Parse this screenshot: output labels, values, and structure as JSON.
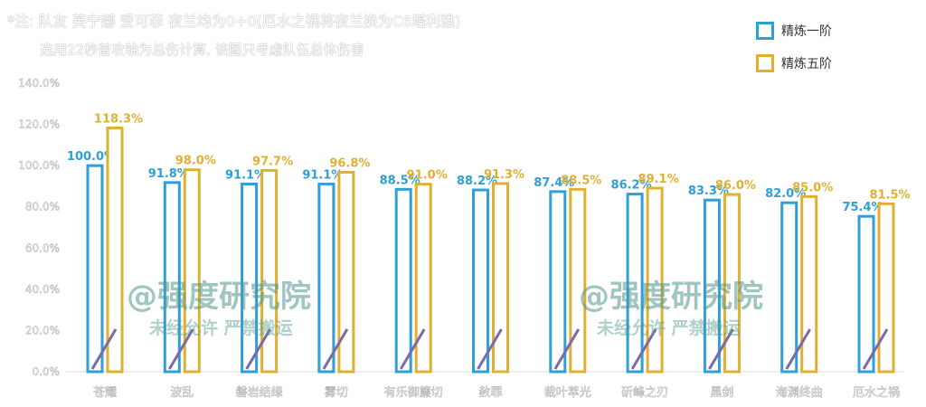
{
  "notes": {
    "line1": "*注: 队友 芙宁娜 爱可菲 夜兰均为0+0(厄水之祸将夜兰换为C6塔利雅)",
    "line2": "选用22秒普攻轴为总伤计算, 该图只考虑队伍总体伤害"
  },
  "watermark": {
    "main": "@强度研究院",
    "sub": "未经允许 严禁搬运"
  },
  "colors": {
    "r1": "#2f9fd8",
    "r5": "#e0b030"
  },
  "chart_data": {
    "type": "bar",
    "title": "",
    "categories": [
      "苍耀",
      "波乱",
      "磐岩结绿",
      "雾切",
      "有乐御簾切",
      "赦罪",
      "裁叶萃光",
      "斫峰之刃",
      "黑剑",
      "海渊终曲",
      "厄水之祸"
    ],
    "series": [
      {
        "name": "精炼一阶",
        "values": [
          100.0,
          91.8,
          91.1,
          91.1,
          88.5,
          88.2,
          87.4,
          86.2,
          83.3,
          82.0,
          75.4
        ]
      },
      {
        "name": "精炼五阶",
        "values": [
          118.3,
          98.0,
          97.7,
          96.8,
          91.0,
          91.3,
          88.5,
          89.1,
          86.0,
          85.0,
          81.5
        ]
      }
    ],
    "ylim": [
      0,
      140
    ],
    "yticks": [
      "0.0%",
      "20.0%",
      "40.0%",
      "60.0%",
      "80.0%",
      "100.0%",
      "120.0%",
      "140.0%"
    ],
    "legend": "top-right",
    "grid": false
  }
}
